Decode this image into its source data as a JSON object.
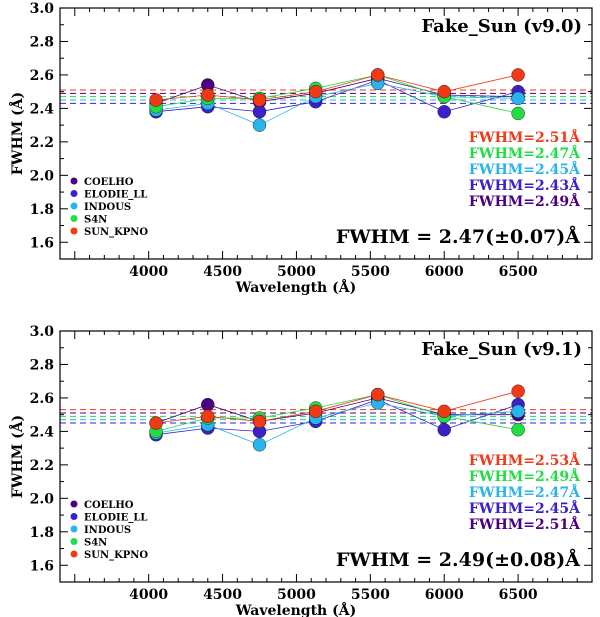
{
  "chart_data": [
    {
      "type": "line",
      "title": "Fake_Sun (v9.0)",
      "xlabel": "Wavelength (Å)",
      "ylabel": "FWHM (Å)",
      "xlim": [
        3400,
        7000
      ],
      "ylim": [
        1.5,
        3.0
      ],
      "x_ticks": [
        4000,
        4500,
        5000,
        5500,
        6000,
        6500
      ],
      "y_ticks": [
        1.6,
        1.8,
        2.0,
        2.2,
        2.4,
        2.6,
        2.8,
        3.0
      ],
      "x": [
        4050,
        4400,
        4750,
        5130,
        5550,
        6000,
        6500
      ],
      "series": [
        {
          "name": "COELHO",
          "color": "#4b0082",
          "values": [
            2.43,
            2.54,
            2.44,
            2.49,
            2.58,
            2.48,
            2.47
          ],
          "mean": 2.49,
          "fwhm_label": "FWHM=2.49Å"
        },
        {
          "name": "ELODIE_LL",
          "color": "#3a22c8",
          "values": [
            2.38,
            2.41,
            2.38,
            2.44,
            2.57,
            2.38,
            2.5
          ],
          "mean": 2.43,
          "fwhm_label": "FWHM=2.43Å"
        },
        {
          "name": "INDOUS",
          "color": "#2ab4ee",
          "values": [
            2.39,
            2.43,
            2.3,
            2.47,
            2.55,
            2.47,
            2.46
          ],
          "mean": 2.45,
          "fwhm_label": "FWHM=2.45Å"
        },
        {
          "name": "S4N",
          "color": "#22dd44",
          "values": [
            2.41,
            2.46,
            2.46,
            2.52,
            2.6,
            2.47,
            2.37
          ],
          "mean": 2.47,
          "fwhm_label": "FWHM=2.47Å"
        },
        {
          "name": "SUN_KPNO",
          "color": "#f03a16",
          "values": [
            2.45,
            2.48,
            2.45,
            2.5,
            2.6,
            2.5,
            2.6
          ],
          "mean": 2.51,
          "fwhm_label": "FWHM=2.51Å"
        }
      ],
      "summary": "FWHM = 2.47(±0.07)Å",
      "legend": "bottom-left"
    },
    {
      "type": "line",
      "title": "Fake_Sun (v9.1)",
      "xlabel": "Wavelength (Å)",
      "ylabel": "FWHM (Å)",
      "xlim": [
        3400,
        7000
      ],
      "ylim": [
        1.5,
        3.0
      ],
      "x_ticks": [
        4000,
        4500,
        5000,
        5500,
        6000,
        6500
      ],
      "y_ticks": [
        1.6,
        1.8,
        2.0,
        2.2,
        2.4,
        2.6,
        2.8,
        3.0
      ],
      "x": [
        4050,
        4400,
        4750,
        5130,
        5550,
        6000,
        6500
      ],
      "series": [
        {
          "name": "COELHO",
          "color": "#4b0082",
          "values": [
            2.45,
            2.56,
            2.46,
            2.51,
            2.6,
            2.5,
            2.5
          ],
          "mean": 2.51,
          "fwhm_label": "FWHM=2.51Å"
        },
        {
          "name": "ELODIE_LL",
          "color": "#3a22c8",
          "values": [
            2.38,
            2.42,
            2.4,
            2.46,
            2.59,
            2.41,
            2.56
          ],
          "mean": 2.45,
          "fwhm_label": "FWHM=2.45Å"
        },
        {
          "name": "INDOUS",
          "color": "#2ab4ee",
          "values": [
            2.39,
            2.44,
            2.32,
            2.48,
            2.57,
            2.49,
            2.52
          ],
          "mean": 2.47,
          "fwhm_label": "FWHM=2.47Å"
        },
        {
          "name": "S4N",
          "color": "#22dd44",
          "values": [
            2.4,
            2.48,
            2.48,
            2.54,
            2.62,
            2.49,
            2.41
          ],
          "mean": 2.49,
          "fwhm_label": "FWHM=2.49Å"
        },
        {
          "name": "SUN_KPNO",
          "color": "#f03a16",
          "values": [
            2.45,
            2.49,
            2.46,
            2.52,
            2.62,
            2.52,
            2.64
          ],
          "mean": 2.53,
          "fwhm_label": "FWHM=2.53Å"
        }
      ],
      "summary": "FWHM = 2.49(±0.08)Å",
      "legend": "bottom-left"
    }
  ]
}
